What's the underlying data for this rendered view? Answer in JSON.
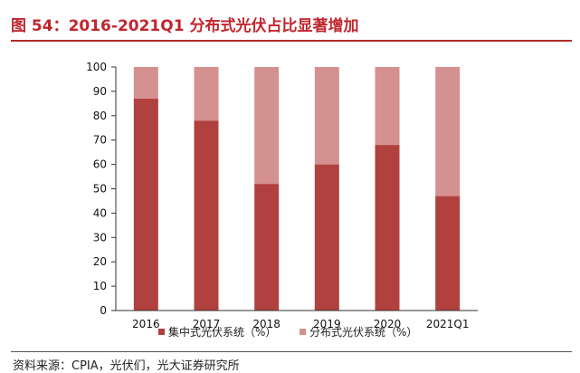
{
  "title": "图 54：2016-2021Q1 分布式光伏占比显著增加",
  "source_text": "资料来源：CPIA，光伏们，光大证券研究所",
  "colors": {
    "title": "#c0262d",
    "series_1": "#b0413e",
    "series_2": "#d4918f"
  },
  "chart_data": {
    "type": "bar",
    "stacked": true,
    "categories": [
      "2016",
      "2017",
      "2018",
      "2019",
      "2020",
      "2021Q1"
    ],
    "series": [
      {
        "name": "集中式光伏系统（%）",
        "values": [
          87,
          78,
          52,
          60,
          68,
          47
        ]
      },
      {
        "name": "分布式光伏系统（%）",
        "values": [
          13,
          22,
          48,
          40,
          32,
          53
        ]
      }
    ],
    "ylim": [
      0,
      100
    ],
    "yticks": [
      0,
      10,
      20,
      30,
      40,
      50,
      60,
      70,
      80,
      90,
      100
    ],
    "grid": false,
    "legend": "bottom"
  }
}
